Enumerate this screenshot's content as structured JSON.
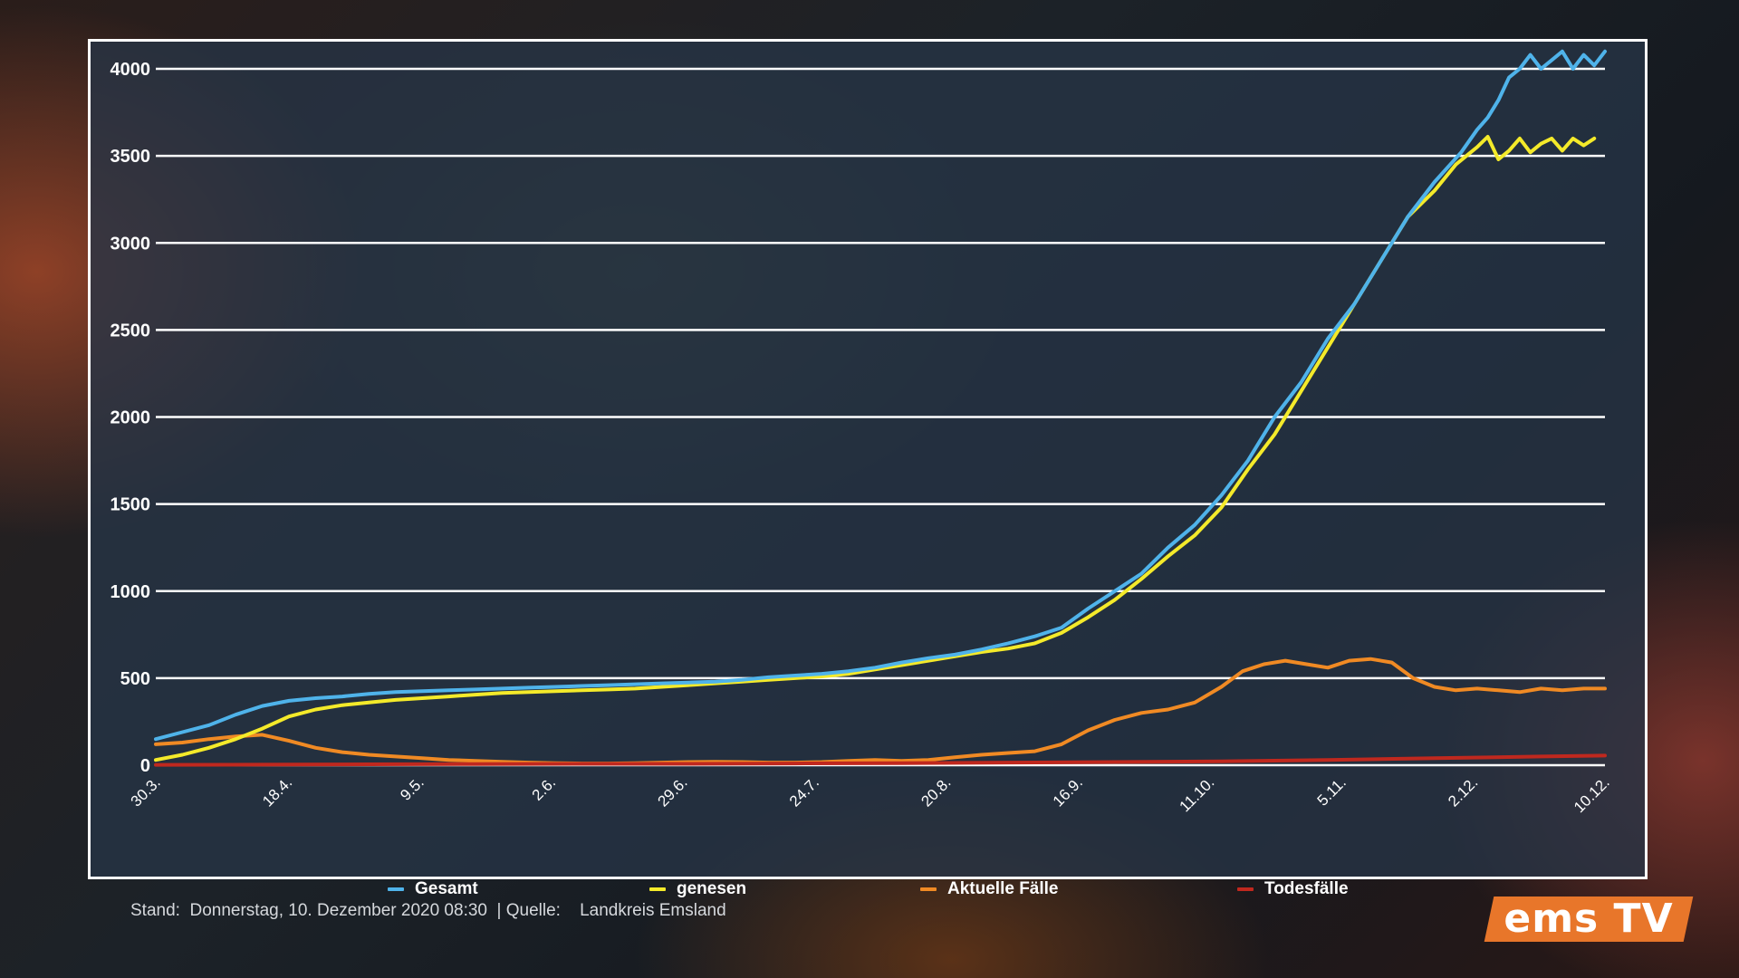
{
  "chart_data": {
    "type": "line",
    "x_ticks": [
      "30.3.",
      "18.4.",
      "9.5.",
      "2.6.",
      "29.6.",
      "24.7.",
      "20.8.",
      "16.9.",
      "11.10.",
      "5.11.",
      "2.12.",
      "10.12."
    ],
    "y_ticks": [
      "0",
      "500",
      "1000",
      "1500",
      "2000",
      "2500",
      "3000",
      "3500",
      "4000"
    ],
    "ylim": [
      0,
      4000
    ],
    "grid": true,
    "legend_position": "bottom",
    "series": [
      {
        "name": "Gesamt",
        "color": "#4fb3ea",
        "points": [
          [
            0,
            150
          ],
          [
            5,
            190
          ],
          [
            10,
            230
          ],
          [
            15,
            290
          ],
          [
            20,
            340
          ],
          [
            25,
            370
          ],
          [
            30,
            385
          ],
          [
            35,
            395
          ],
          [
            40,
            410
          ],
          [
            45,
            420
          ],
          [
            50,
            425
          ],
          [
            55,
            430
          ],
          [
            60,
            435
          ],
          [
            65,
            440
          ],
          [
            70,
            445
          ],
          [
            75,
            450
          ],
          [
            80,
            455
          ],
          [
            85,
            460
          ],
          [
            90,
            465
          ],
          [
            95,
            470
          ],
          [
            100,
            475
          ],
          [
            105,
            480
          ],
          [
            110,
            490
          ],
          [
            115,
            505
          ],
          [
            120,
            515
          ],
          [
            125,
            525
          ],
          [
            130,
            540
          ],
          [
            135,
            560
          ],
          [
            140,
            590
          ],
          [
            145,
            615
          ],
          [
            150,
            635
          ],
          [
            155,
            665
          ],
          [
            160,
            700
          ],
          [
            165,
            740
          ],
          [
            170,
            790
          ],
          [
            175,
            900
          ],
          [
            180,
            1000
          ],
          [
            185,
            1100
          ],
          [
            190,
            1250
          ],
          [
            195,
            1380
          ],
          [
            200,
            1550
          ],
          [
            205,
            1750
          ],
          [
            210,
            2000
          ],
          [
            215,
            2200
          ],
          [
            220,
            2450
          ],
          [
            225,
            2650
          ],
          [
            230,
            2900
          ],
          [
            235,
            3150
          ],
          [
            240,
            3350
          ],
          [
            245,
            3520
          ],
          [
            248,
            3650
          ],
          [
            250,
            3720
          ],
          [
            252,
            3820
          ],
          [
            254,
            3950
          ],
          [
            256,
            4000
          ],
          [
            258,
            4080
          ],
          [
            260,
            4000
          ],
          [
            262,
            4050
          ],
          [
            264,
            4100
          ],
          [
            266,
            4000
          ],
          [
            268,
            4080
          ],
          [
            270,
            4020
          ],
          [
            272,
            4100
          ]
        ]
      },
      {
        "name": "genesen",
        "color": "#f4ea2a",
        "points": [
          [
            0,
            30
          ],
          [
            5,
            60
          ],
          [
            10,
            100
          ],
          [
            15,
            150
          ],
          [
            20,
            210
          ],
          [
            25,
            280
          ],
          [
            30,
            320
          ],
          [
            35,
            345
          ],
          [
            40,
            360
          ],
          [
            45,
            375
          ],
          [
            50,
            385
          ],
          [
            55,
            395
          ],
          [
            60,
            405
          ],
          [
            65,
            415
          ],
          [
            70,
            420
          ],
          [
            75,
            425
          ],
          [
            80,
            430
          ],
          [
            85,
            435
          ],
          [
            90,
            440
          ],
          [
            95,
            450
          ],
          [
            100,
            460
          ],
          [
            105,
            470
          ],
          [
            110,
            480
          ],
          [
            115,
            490
          ],
          [
            120,
            500
          ],
          [
            125,
            510
          ],
          [
            130,
            525
          ],
          [
            135,
            550
          ],
          [
            140,
            575
          ],
          [
            145,
            600
          ],
          [
            150,
            625
          ],
          [
            155,
            650
          ],
          [
            160,
            670
          ],
          [
            165,
            700
          ],
          [
            170,
            760
          ],
          [
            175,
            850
          ],
          [
            180,
            950
          ],
          [
            185,
            1070
          ],
          [
            190,
            1200
          ],
          [
            195,
            1320
          ],
          [
            200,
            1480
          ],
          [
            205,
            1700
          ],
          [
            210,
            1900
          ],
          [
            215,
            2150
          ],
          [
            220,
            2400
          ],
          [
            225,
            2650
          ],
          [
            230,
            2900
          ],
          [
            235,
            3150
          ],
          [
            240,
            3300
          ],
          [
            244,
            3450
          ],
          [
            246,
            3500
          ],
          [
            248,
            3550
          ],
          [
            250,
            3610
          ],
          [
            252,
            3480
          ],
          [
            254,
            3530
          ],
          [
            256,
            3600
          ],
          [
            258,
            3520
          ],
          [
            260,
            3570
          ],
          [
            262,
            3600
          ],
          [
            264,
            3530
          ],
          [
            266,
            3600
          ],
          [
            268,
            3560
          ],
          [
            270,
            3600
          ]
        ]
      },
      {
        "name": "Aktuelle Fälle",
        "color": "#f08a24",
        "points": [
          [
            0,
            120
          ],
          [
            5,
            130
          ],
          [
            10,
            150
          ],
          [
            15,
            165
          ],
          [
            20,
            175
          ],
          [
            25,
            140
          ],
          [
            30,
            100
          ],
          [
            35,
            75
          ],
          [
            40,
            60
          ],
          [
            45,
            50
          ],
          [
            50,
            40
          ],
          [
            55,
            30
          ],
          [
            60,
            25
          ],
          [
            65,
            20
          ],
          [
            70,
            15
          ],
          [
            75,
            12
          ],
          [
            80,
            10
          ],
          [
            85,
            10
          ],
          [
            90,
            12
          ],
          [
            95,
            15
          ],
          [
            100,
            18
          ],
          [
            105,
            20
          ],
          [
            110,
            18
          ],
          [
            115,
            15
          ],
          [
            120,
            15
          ],
          [
            125,
            18
          ],
          [
            130,
            25
          ],
          [
            135,
            30
          ],
          [
            140,
            25
          ],
          [
            145,
            30
          ],
          [
            150,
            45
          ],
          [
            155,
            60
          ],
          [
            160,
            70
          ],
          [
            165,
            80
          ],
          [
            170,
            120
          ],
          [
            175,
            200
          ],
          [
            180,
            260
          ],
          [
            185,
            300
          ],
          [
            190,
            320
          ],
          [
            195,
            360
          ],
          [
            200,
            450
          ],
          [
            204,
            540
          ],
          [
            208,
            580
          ],
          [
            212,
            600
          ],
          [
            216,
            580
          ],
          [
            220,
            560
          ],
          [
            224,
            600
          ],
          [
            228,
            610
          ],
          [
            232,
            590
          ],
          [
            236,
            500
          ],
          [
            240,
            450
          ],
          [
            244,
            430
          ],
          [
            248,
            440
          ],
          [
            252,
            430
          ],
          [
            256,
            420
          ],
          [
            260,
            440
          ],
          [
            264,
            430
          ],
          [
            268,
            440
          ],
          [
            272,
            440
          ]
        ]
      },
      {
        "name": "Todesfälle",
        "color": "#c0281e",
        "points": [
          [
            0,
            2
          ],
          [
            20,
            3
          ],
          [
            40,
            5
          ],
          [
            60,
            7
          ],
          [
            80,
            8
          ],
          [
            100,
            8
          ],
          [
            120,
            10
          ],
          [
            140,
            12
          ],
          [
            160,
            15
          ],
          [
            180,
            18
          ],
          [
            200,
            22
          ],
          [
            220,
            30
          ],
          [
            240,
            40
          ],
          [
            260,
            50
          ],
          [
            272,
            55
          ]
        ]
      }
    ]
  },
  "footer": {
    "text": "Stand:  Donnerstag, 10. Dezember 2020 08:30  | Quelle:    Landkreis Emsland"
  },
  "logo": {
    "text": "ems TV",
    "color": "#e8762a"
  }
}
